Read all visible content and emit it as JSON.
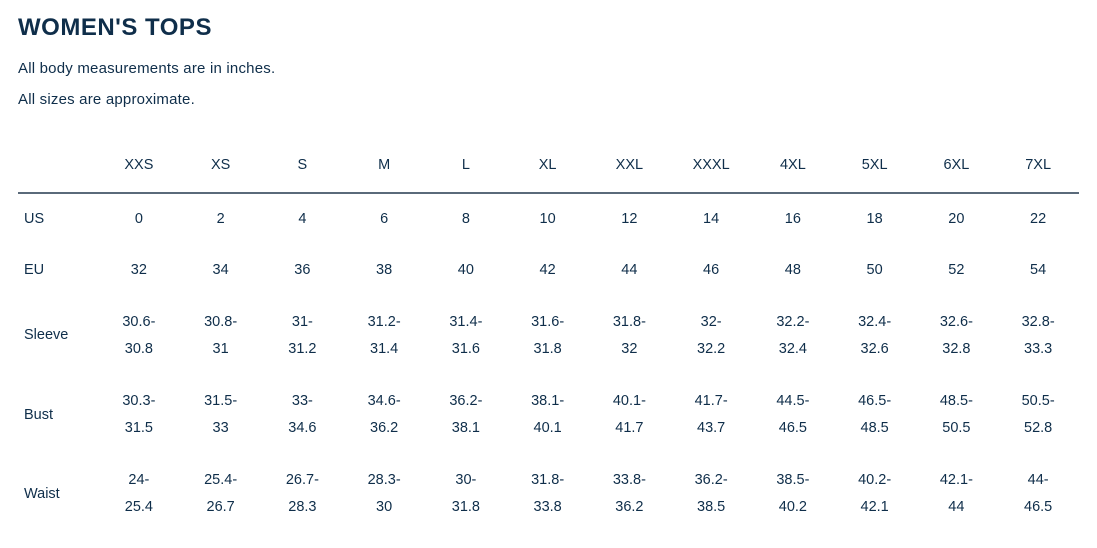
{
  "title": "WOMEN'S TOPS",
  "note1": "All body measurements are in inches.",
  "note2": "All sizes are approximate.",
  "colors": {
    "text": "#0f2e4a",
    "background": "#ffffff",
    "rule": "#5a6a7a"
  },
  "table": {
    "type": "table",
    "columns": [
      "XXS",
      "XS",
      "S",
      "M",
      "L",
      "XL",
      "XXL",
      "XXXL",
      "4XL",
      "5XL",
      "6XL",
      "7XL"
    ],
    "rows": [
      {
        "label": "US",
        "cells": [
          "0",
          "2",
          "4",
          "6",
          "8",
          "10",
          "12",
          "14",
          "16",
          "18",
          "20",
          "22"
        ]
      },
      {
        "label": "EU",
        "cells": [
          "32",
          "34",
          "36",
          "38",
          "40",
          "42",
          "44",
          "46",
          "48",
          "50",
          "52",
          "54"
        ]
      },
      {
        "label": "Sleeve",
        "cells": [
          "30.6-30.8",
          "30.8-31",
          "31-31.2",
          "31.2-31.4",
          "31.4-31.6",
          "31.6-31.8",
          "31.8-32",
          "32-32.2",
          "32.2-32.4",
          "32.4-32.6",
          "32.6-32.8",
          "32.8-33.3"
        ]
      },
      {
        "label": "Bust",
        "cells": [
          "30.3-31.5",
          "31.5-33",
          "33-34.6",
          "34.6-36.2",
          "36.2-38.1",
          "38.1-40.1",
          "40.1-41.7",
          "41.7-43.7",
          "44.5-46.5",
          "46.5-48.5",
          "48.5-50.5",
          "50.5-52.8"
        ]
      },
      {
        "label": "Waist",
        "cells": [
          "24-25.4",
          "25.4-26.7",
          "26.7-28.3",
          "28.3-30",
          "30-31.8",
          "31.8-33.8",
          "33.8-36.2",
          "36.2-38.5",
          "38.5-40.2",
          "40.2-42.1",
          "42.1-44",
          "44-46.5"
        ]
      }
    ]
  }
}
